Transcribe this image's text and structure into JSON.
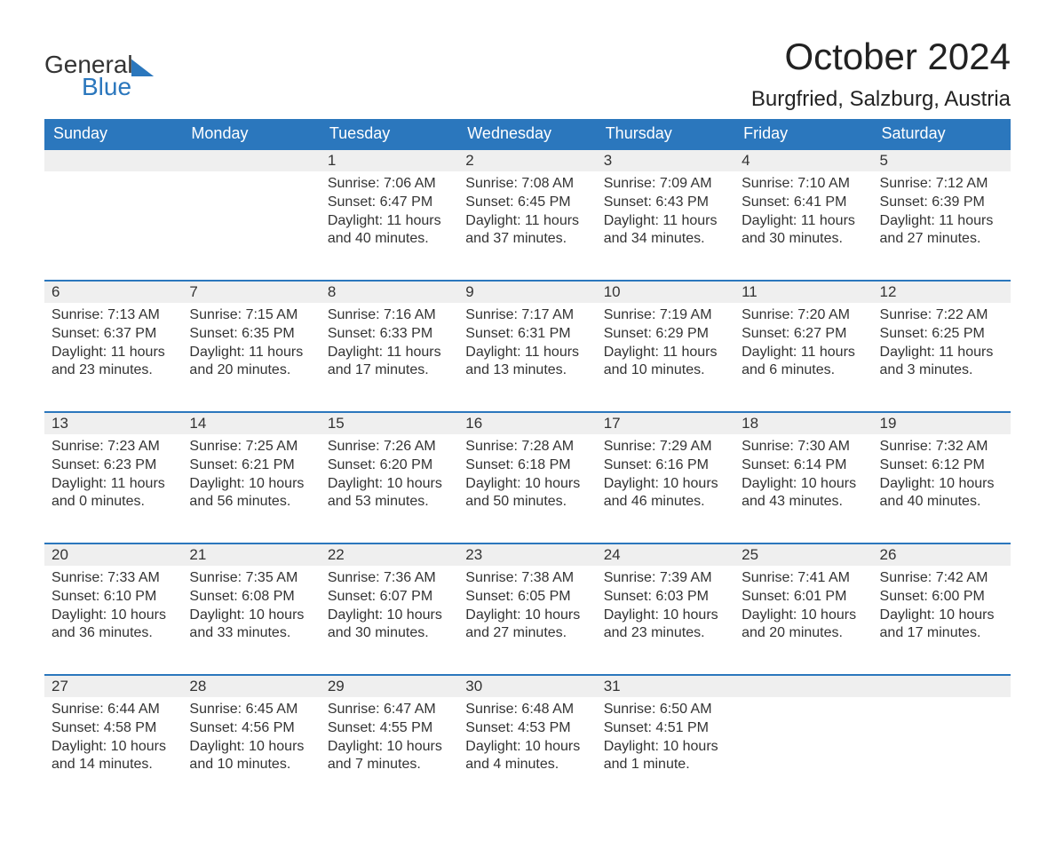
{
  "logo": {
    "word1": "General",
    "word2": "Blue"
  },
  "title": "October 2024",
  "location": "Burgfried, Salzburg, Austria",
  "colors": {
    "accent": "#2b77bd",
    "header_bg": "#2b77bd",
    "header_text": "#ffffff",
    "daynum_bg": "#efefef",
    "text": "#333333",
    "background": "#ffffff"
  },
  "weekdays": [
    "Sunday",
    "Monday",
    "Tuesday",
    "Wednesday",
    "Thursday",
    "Friday",
    "Saturday"
  ],
  "weeks": [
    [
      null,
      null,
      {
        "n": "1",
        "sunrise": "7:06 AM",
        "sunset": "6:47 PM",
        "daylight": "11 hours and 40 minutes."
      },
      {
        "n": "2",
        "sunrise": "7:08 AM",
        "sunset": "6:45 PM",
        "daylight": "11 hours and 37 minutes."
      },
      {
        "n": "3",
        "sunrise": "7:09 AM",
        "sunset": "6:43 PM",
        "daylight": "11 hours and 34 minutes."
      },
      {
        "n": "4",
        "sunrise": "7:10 AM",
        "sunset": "6:41 PM",
        "daylight": "11 hours and 30 minutes."
      },
      {
        "n": "5",
        "sunrise": "7:12 AM",
        "sunset": "6:39 PM",
        "daylight": "11 hours and 27 minutes."
      }
    ],
    [
      {
        "n": "6",
        "sunrise": "7:13 AM",
        "sunset": "6:37 PM",
        "daylight": "11 hours and 23 minutes."
      },
      {
        "n": "7",
        "sunrise": "7:15 AM",
        "sunset": "6:35 PM",
        "daylight": "11 hours and 20 minutes."
      },
      {
        "n": "8",
        "sunrise": "7:16 AM",
        "sunset": "6:33 PM",
        "daylight": "11 hours and 17 minutes."
      },
      {
        "n": "9",
        "sunrise": "7:17 AM",
        "sunset": "6:31 PM",
        "daylight": "11 hours and 13 minutes."
      },
      {
        "n": "10",
        "sunrise": "7:19 AM",
        "sunset": "6:29 PM",
        "daylight": "11 hours and 10 minutes."
      },
      {
        "n": "11",
        "sunrise": "7:20 AM",
        "sunset": "6:27 PM",
        "daylight": "11 hours and 6 minutes."
      },
      {
        "n": "12",
        "sunrise": "7:22 AM",
        "sunset": "6:25 PM",
        "daylight": "11 hours and 3 minutes."
      }
    ],
    [
      {
        "n": "13",
        "sunrise": "7:23 AM",
        "sunset": "6:23 PM",
        "daylight": "11 hours and 0 minutes."
      },
      {
        "n": "14",
        "sunrise": "7:25 AM",
        "sunset": "6:21 PM",
        "daylight": "10 hours and 56 minutes."
      },
      {
        "n": "15",
        "sunrise": "7:26 AM",
        "sunset": "6:20 PM",
        "daylight": "10 hours and 53 minutes."
      },
      {
        "n": "16",
        "sunrise": "7:28 AM",
        "sunset": "6:18 PM",
        "daylight": "10 hours and 50 minutes."
      },
      {
        "n": "17",
        "sunrise": "7:29 AM",
        "sunset": "6:16 PM",
        "daylight": "10 hours and 46 minutes."
      },
      {
        "n": "18",
        "sunrise": "7:30 AM",
        "sunset": "6:14 PM",
        "daylight": "10 hours and 43 minutes."
      },
      {
        "n": "19",
        "sunrise": "7:32 AM",
        "sunset": "6:12 PM",
        "daylight": "10 hours and 40 minutes."
      }
    ],
    [
      {
        "n": "20",
        "sunrise": "7:33 AM",
        "sunset": "6:10 PM",
        "daylight": "10 hours and 36 minutes."
      },
      {
        "n": "21",
        "sunrise": "7:35 AM",
        "sunset": "6:08 PM",
        "daylight": "10 hours and 33 minutes."
      },
      {
        "n": "22",
        "sunrise": "7:36 AM",
        "sunset": "6:07 PM",
        "daylight": "10 hours and 30 minutes."
      },
      {
        "n": "23",
        "sunrise": "7:38 AM",
        "sunset": "6:05 PM",
        "daylight": "10 hours and 27 minutes."
      },
      {
        "n": "24",
        "sunrise": "7:39 AM",
        "sunset": "6:03 PM",
        "daylight": "10 hours and 23 minutes."
      },
      {
        "n": "25",
        "sunrise": "7:41 AM",
        "sunset": "6:01 PM",
        "daylight": "10 hours and 20 minutes."
      },
      {
        "n": "26",
        "sunrise": "7:42 AM",
        "sunset": "6:00 PM",
        "daylight": "10 hours and 17 minutes."
      }
    ],
    [
      {
        "n": "27",
        "sunrise": "6:44 AM",
        "sunset": "4:58 PM",
        "daylight": "10 hours and 14 minutes."
      },
      {
        "n": "28",
        "sunrise": "6:45 AM",
        "sunset": "4:56 PM",
        "daylight": "10 hours and 10 minutes."
      },
      {
        "n": "29",
        "sunrise": "6:47 AM",
        "sunset": "4:55 PM",
        "daylight": "10 hours and 7 minutes."
      },
      {
        "n": "30",
        "sunrise": "6:48 AM",
        "sunset": "4:53 PM",
        "daylight": "10 hours and 4 minutes."
      },
      {
        "n": "31",
        "sunrise": "6:50 AM",
        "sunset": "4:51 PM",
        "daylight": "10 hours and 1 minute."
      },
      null,
      null
    ]
  ],
  "labels": {
    "sunrise": "Sunrise:",
    "sunset": "Sunset:",
    "daylight": "Daylight:"
  }
}
